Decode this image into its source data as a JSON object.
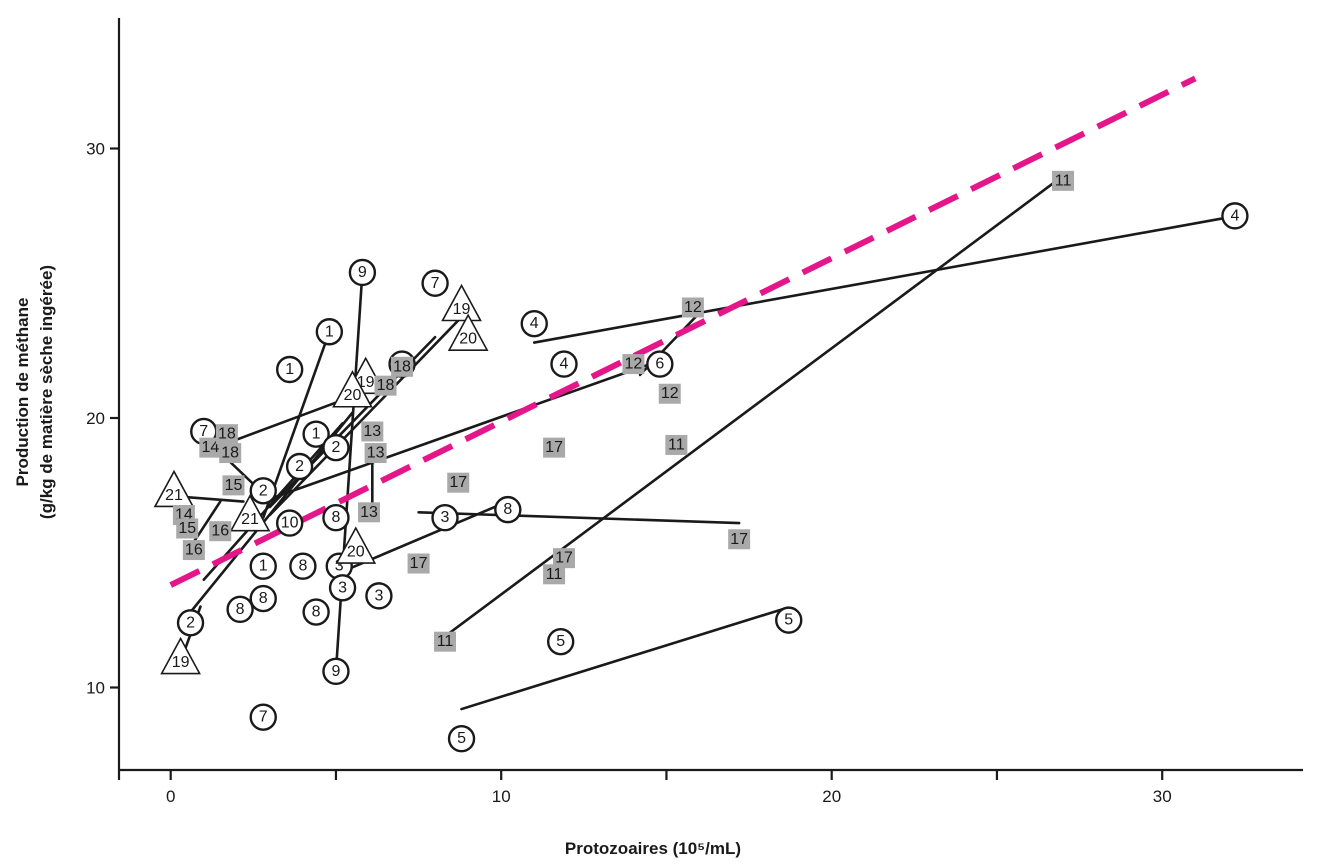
{
  "chart_data": {
    "type": "scatter",
    "title": "",
    "xlabel": "Protozoaires (10⁵/mL)",
    "ylabel_line1": "Production de méthane",
    "ylabel_line2": "(g/kg de matière sèche ingérée)",
    "xlim": [
      -1.5,
      34.5
    ],
    "ylim": [
      7,
      35
    ],
    "x_ticks": [
      0,
      10,
      20,
      30
    ],
    "x_minor_ticks": [
      5,
      15,
      25
    ],
    "y_ticks": [
      10,
      20,
      30
    ],
    "grid": false,
    "legend": "none",
    "colors": {
      "trend": "#e4168a",
      "marker_square_fill": "#a9a9a9",
      "line": "#1a1a1a"
    },
    "trend_line": {
      "x": [
        0,
        31
      ],
      "y": [
        13.8,
        32.6
      ],
      "style": "dashed"
    },
    "points": [
      {
        "label": "1",
        "shape": "circle",
        "x": 4.8,
        "y": 23.2
      },
      {
        "label": "1",
        "shape": "circle",
        "x": 3.6,
        "y": 21.8
      },
      {
        "label": "1",
        "shape": "circle",
        "x": 4.4,
        "y": 19.4
      },
      {
        "label": "1",
        "shape": "circle",
        "x": 2.8,
        "y": 14.5
      },
      {
        "label": "2",
        "shape": "circle",
        "x": 3.9,
        "y": 18.2
      },
      {
        "label": "2",
        "shape": "circle",
        "x": 5.0,
        "y": 18.9
      },
      {
        "label": "2",
        "shape": "circle",
        "x": 2.8,
        "y": 17.3
      },
      {
        "label": "2",
        "shape": "circle",
        "x": 0.6,
        "y": 12.4
      },
      {
        "label": "3",
        "shape": "circle",
        "x": 5.1,
        "y": 14.5
      },
      {
        "label": "3",
        "shape": "circle",
        "x": 5.2,
        "y": 13.7
      },
      {
        "label": "3",
        "shape": "circle",
        "x": 6.3,
        "y": 13.4
      },
      {
        "label": "3",
        "shape": "circle",
        "x": 8.3,
        "y": 16.3
      },
      {
        "label": "4",
        "shape": "circle",
        "x": 11.0,
        "y": 23.5
      },
      {
        "label": "4",
        "shape": "circle",
        "x": 11.9,
        "y": 22.0
      },
      {
        "label": "4",
        "shape": "circle",
        "x": 32.2,
        "y": 27.5
      },
      {
        "label": "5",
        "shape": "circle",
        "x": 11.8,
        "y": 11.7
      },
      {
        "label": "5",
        "shape": "circle",
        "x": 18.7,
        "y": 12.5
      },
      {
        "label": "5",
        "shape": "circle",
        "x": 8.8,
        "y": 8.1
      },
      {
        "label": "6",
        "shape": "circle",
        "x": 14.8,
        "y": 22.0
      },
      {
        "label": "7",
        "shape": "circle",
        "x": 1.0,
        "y": 19.5
      },
      {
        "label": "7",
        "shape": "circle",
        "x": 8.0,
        "y": 25.0
      },
      {
        "label": "7",
        "shape": "circle",
        "x": 2.8,
        "y": 8.9
      },
      {
        "label": "8",
        "shape": "circle",
        "x": 5.0,
        "y": 16.3
      },
      {
        "label": "8",
        "shape": "circle",
        "x": 10.2,
        "y": 16.6
      },
      {
        "label": "8",
        "shape": "circle",
        "x": 4.0,
        "y": 14.5
      },
      {
        "label": "8",
        "shape": "circle",
        "x": 2.8,
        "y": 13.3
      },
      {
        "label": "8",
        "shape": "circle",
        "x": 2.1,
        "y": 12.9
      },
      {
        "label": "8",
        "shape": "circle",
        "x": 4.4,
        "y": 12.8
      },
      {
        "label": "9",
        "shape": "circle",
        "x": 5.8,
        "y": 25.4
      },
      {
        "label": "9",
        "shape": "circle",
        "x": 5.0,
        "y": 10.6
      },
      {
        "label": "10",
        "shape": "circle",
        "x": 7.0,
        "y": 22.0
      },
      {
        "label": "10",
        "shape": "circle",
        "x": 3.6,
        "y": 16.1
      },
      {
        "label": "19",
        "shape": "triangle",
        "x": 8.8,
        "y": 24.1
      },
      {
        "label": "19",
        "shape": "triangle",
        "x": 5.9,
        "y": 21.4
      },
      {
        "label": "19",
        "shape": "triangle",
        "x": 0.3,
        "y": 11.0
      },
      {
        "label": "20",
        "shape": "triangle",
        "x": 9.0,
        "y": 23.0
      },
      {
        "label": "20",
        "shape": "triangle",
        "x": 5.5,
        "y": 20.9
      },
      {
        "label": "20",
        "shape": "triangle",
        "x": 5.6,
        "y": 15.1
      },
      {
        "label": "21",
        "shape": "triangle",
        "x": 0.1,
        "y": 17.2
      },
      {
        "label": "21",
        "shape": "triangle",
        "x": 2.4,
        "y": 16.3
      },
      {
        "label": "11",
        "shape": "square",
        "x": 27.0,
        "y": 28.8
      },
      {
        "label": "11",
        "shape": "square",
        "x": 15.3,
        "y": 19.0
      },
      {
        "label": "11",
        "shape": "square",
        "x": 11.6,
        "y": 14.2
      },
      {
        "label": "11",
        "shape": "square",
        "x": 8.3,
        "y": 11.7
      },
      {
        "label": "12",
        "shape": "square",
        "x": 15.8,
        "y": 24.1
      },
      {
        "label": "12",
        "shape": "square",
        "x": 14.0,
        "y": 22.0
      },
      {
        "label": "12",
        "shape": "square",
        "x": 15.1,
        "y": 20.9
      },
      {
        "label": "13",
        "shape": "square",
        "x": 6.1,
        "y": 19.5
      },
      {
        "label": "13",
        "shape": "square",
        "x": 6.2,
        "y": 18.7
      },
      {
        "label": "13",
        "shape": "square",
        "x": 6.0,
        "y": 16.5
      },
      {
        "label": "14",
        "shape": "square",
        "x": 1.2,
        "y": 18.9
      },
      {
        "label": "14",
        "shape": "square",
        "x": 0.4,
        "y": 16.4
      },
      {
        "label": "15",
        "shape": "square",
        "x": 1.9,
        "y": 17.5
      },
      {
        "label": "15",
        "shape": "square",
        "x": 0.5,
        "y": 15.9
      },
      {
        "label": "16",
        "shape": "square",
        "x": 1.5,
        "y": 15.8
      },
      {
        "label": "16",
        "shape": "square",
        "x": 0.7,
        "y": 15.1
      },
      {
        "label": "17",
        "shape": "square",
        "x": 11.6,
        "y": 18.9
      },
      {
        "label": "17",
        "shape": "square",
        "x": 8.7,
        "y": 17.6
      },
      {
        "label": "17",
        "shape": "square",
        "x": 17.2,
        "y": 15.5
      },
      {
        "label": "17",
        "shape": "square",
        "x": 11.9,
        "y": 14.8
      },
      {
        "label": "17",
        "shape": "square",
        "x": 7.5,
        "y": 14.6
      },
      {
        "label": "18",
        "shape": "square",
        "x": 1.7,
        "y": 19.4
      },
      {
        "label": "18",
        "shape": "square",
        "x": 1.8,
        "y": 18.7
      },
      {
        "label": "18",
        "shape": "square",
        "x": 6.5,
        "y": 21.2
      },
      {
        "label": "18",
        "shape": "square",
        "x": 7.0,
        "y": 21.9
      }
    ],
    "segments": [
      {
        "x": [
          2.8,
          4.8
        ],
        "y": [
          16.3,
          23.2
        ]
      },
      {
        "x": [
          0.6,
          5.5
        ],
        "y": [
          12.8,
          20.2
        ]
      },
      {
        "x": [
          1.0,
          5.2
        ],
        "y": [
          14.0,
          19.8
        ]
      },
      {
        "x": [
          3.0,
          8.0
        ],
        "y": [
          16.7,
          23.0
        ]
      },
      {
        "x": [
          3.0,
          9.0
        ],
        "y": [
          16.4,
          24.0
        ]
      },
      {
        "x": [
          5.8,
          5.0
        ],
        "y": [
          25.4,
          10.6
        ]
      },
      {
        "x": [
          1.0,
          2.8
        ],
        "y": [
          19.3,
          17.2
        ]
      },
      {
        "x": [
          2.0,
          5.5
        ],
        "y": [
          19.2,
          20.8
        ]
      },
      {
        "x": [
          3.0,
          14.5
        ],
        "y": [
          17.0,
          22.0
        ]
      },
      {
        "x": [
          11.0,
          31.8
        ],
        "y": [
          22.8,
          27.4
        ]
      },
      {
        "x": [
          14.2,
          16.0
        ],
        "y": [
          21.6,
          23.9
        ]
      },
      {
        "x": [
          8.3,
          26.8
        ],
        "y": [
          11.9,
          28.8
        ]
      },
      {
        "x": [
          8.8,
          18.5
        ],
        "y": [
          9.2,
          12.9
        ]
      },
      {
        "x": [
          7.5,
          17.2
        ],
        "y": [
          16.5,
          16.1
        ]
      },
      {
        "x": [
          5.0,
          10.0
        ],
        "y": [
          14.2,
          16.8
        ]
      },
      {
        "x": [
          0.1,
          2.2
        ],
        "y": [
          17.1,
          16.9
        ]
      },
      {
        "x": [
          0.4,
          0.9
        ],
        "y": [
          11.3,
          13.0
        ]
      },
      {
        "x": [
          6.1,
          6.1
        ],
        "y": [
          18.6,
          16.8
        ]
      },
      {
        "x": [
          0.7,
          1.5
        ],
        "y": [
          15.4,
          16.9
        ]
      }
    ]
  }
}
